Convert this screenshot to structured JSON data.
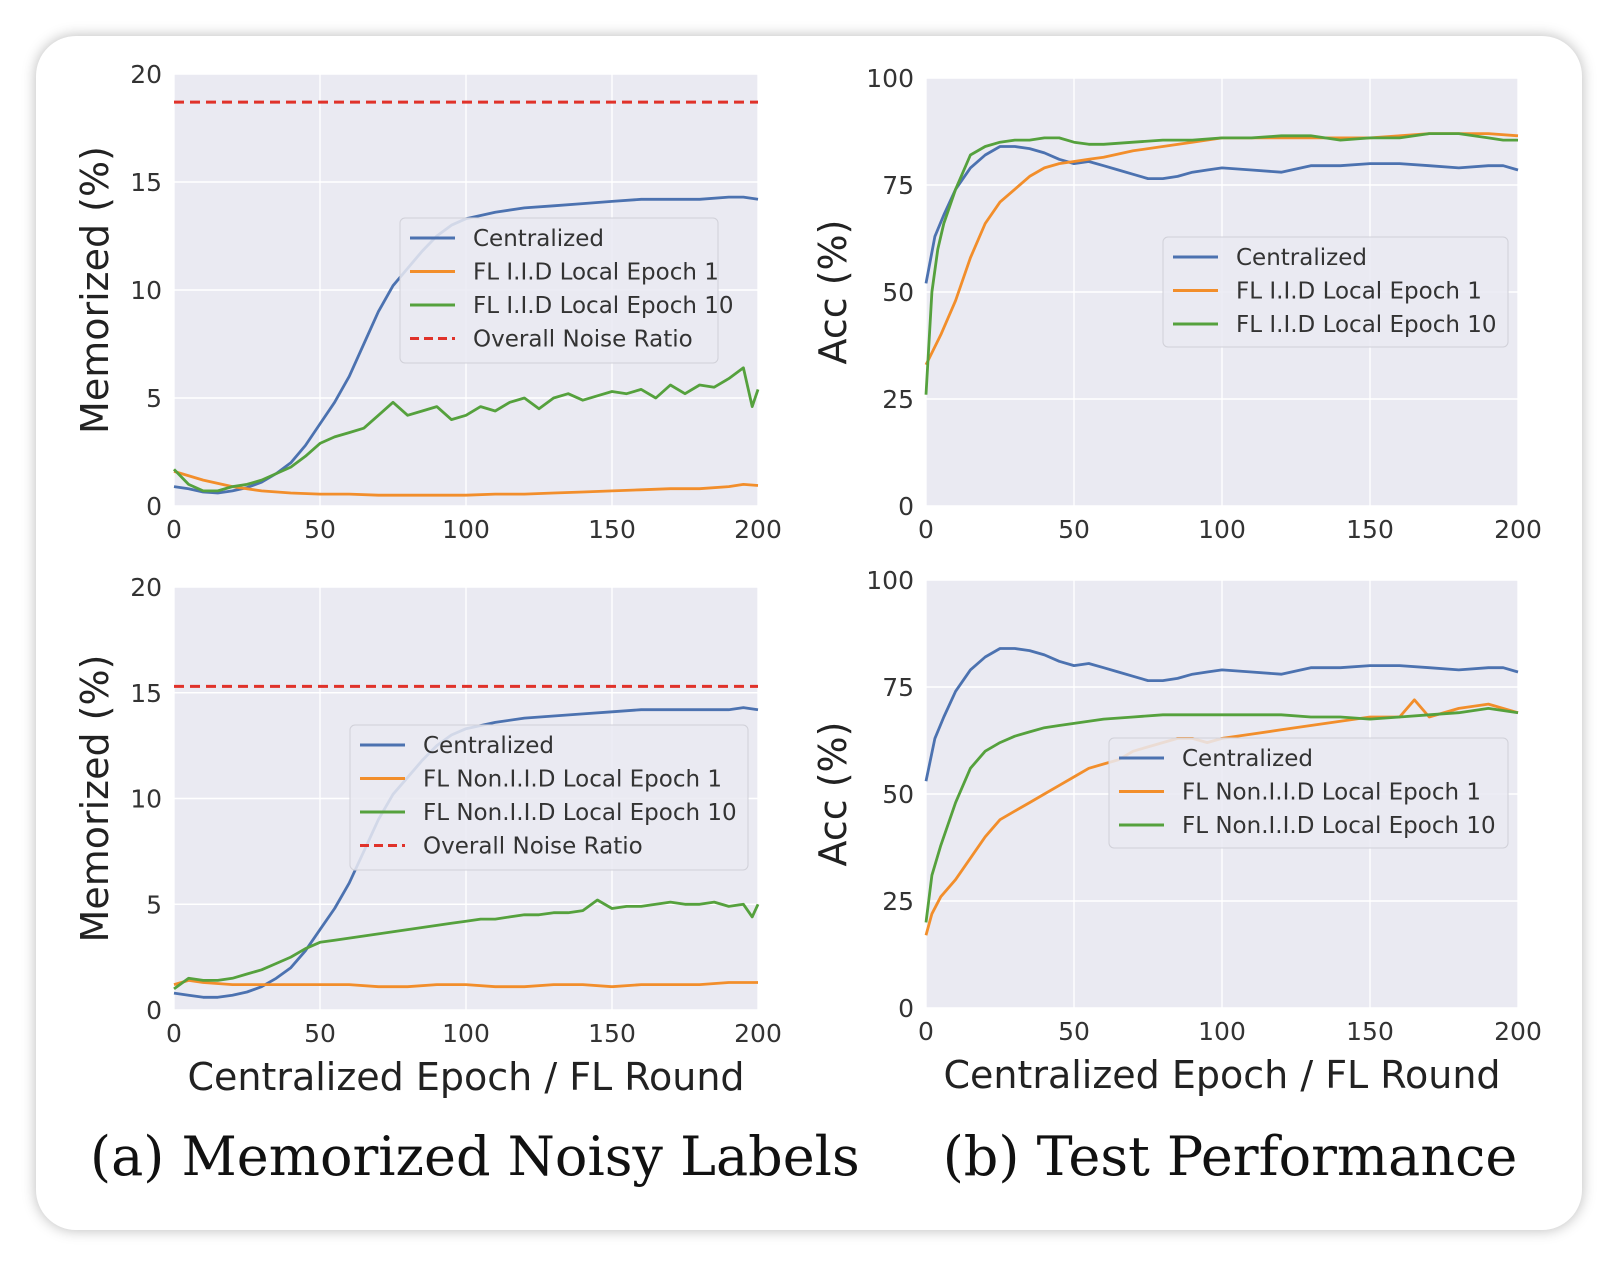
{
  "captions": {
    "a": "(a) Memorized Noisy Labels",
    "b": "(b) Test Performance"
  },
  "colors": {
    "centralized": "#4c72b0",
    "local_epoch_1": "#f28e2b",
    "local_epoch_10": "#55a13d",
    "noise_ratio": "#e0322a",
    "plot_bg": "#eaeaf2",
    "grid": "#ffffff"
  },
  "chart_data": [
    {
      "type": "line",
      "xlabel": "",
      "ylabel": "Memorized (%)",
      "xlim": [
        0,
        200
      ],
      "ylim": [
        0,
        20
      ],
      "xticks": [
        0,
        50,
        100,
        150,
        200
      ],
      "yticks": [
        0,
        5,
        10,
        15,
        20
      ],
      "legend_position": "center-right",
      "series": [
        {
          "name": "Centralized",
          "color": "#4c72b0",
          "x": [
            0,
            5,
            10,
            15,
            20,
            25,
            30,
            35,
            40,
            45,
            50,
            55,
            60,
            65,
            70,
            75,
            80,
            85,
            90,
            95,
            100,
            110,
            120,
            130,
            140,
            150,
            160,
            170,
            180,
            190,
            195,
            200
          ],
          "y": [
            0.9,
            0.8,
            0.65,
            0.6,
            0.7,
            0.85,
            1.1,
            1.5,
            2.0,
            2.8,
            3.8,
            4.8,
            6.0,
            7.5,
            9.0,
            10.2,
            11.0,
            11.8,
            12.5,
            13.0,
            13.3,
            13.6,
            13.8,
            13.9,
            14.0,
            14.1,
            14.2,
            14.2,
            14.2,
            14.3,
            14.3,
            14.2
          ]
        },
        {
          "name": "FL I.I.D Local Epoch 1",
          "color": "#f28e2b",
          "x": [
            0,
            10,
            20,
            30,
            40,
            50,
            60,
            70,
            80,
            90,
            100,
            110,
            120,
            130,
            140,
            150,
            160,
            170,
            180,
            190,
            195,
            200
          ],
          "y": [
            1.6,
            1.2,
            0.9,
            0.7,
            0.6,
            0.55,
            0.55,
            0.5,
            0.5,
            0.5,
            0.5,
            0.55,
            0.55,
            0.6,
            0.65,
            0.7,
            0.75,
            0.8,
            0.8,
            0.9,
            1.0,
            0.95
          ]
        },
        {
          "name": "FL I.I.D Local Epoch 10",
          "color": "#55a13d",
          "x": [
            0,
            5,
            10,
            15,
            20,
            25,
            30,
            35,
            40,
            45,
            50,
            55,
            60,
            65,
            70,
            75,
            80,
            85,
            90,
            95,
            100,
            105,
            110,
            115,
            120,
            125,
            130,
            135,
            140,
            145,
            150,
            155,
            160,
            165,
            170,
            175,
            180,
            185,
            190,
            195,
            198,
            200
          ],
          "y": [
            1.7,
            1.0,
            0.7,
            0.7,
            0.9,
            1.0,
            1.2,
            1.5,
            1.8,
            2.3,
            2.9,
            3.2,
            3.4,
            3.6,
            4.2,
            4.8,
            4.2,
            4.4,
            4.6,
            4.0,
            4.2,
            4.6,
            4.4,
            4.8,
            5.0,
            4.5,
            5.0,
            5.2,
            4.9,
            5.1,
            5.3,
            5.2,
            5.4,
            5.0,
            5.6,
            5.2,
            5.6,
            5.5,
            5.9,
            6.4,
            4.6,
            5.4
          ]
        },
        {
          "name": "Overall Noise Ratio",
          "color": "#e0322a",
          "dashed": true,
          "x": [
            0,
            200
          ],
          "y": [
            18.7,
            18.7
          ]
        }
      ]
    },
    {
      "type": "line",
      "xlabel": "",
      "ylabel": "Acc (%)",
      "xlim": [
        0,
        200
      ],
      "ylim": [
        0,
        100
      ],
      "xticks": [
        0,
        50,
        100,
        150,
        200
      ],
      "yticks": [
        0,
        25,
        50,
        75,
        100
      ],
      "legend_position": "center-right",
      "series": [
        {
          "name": "Centralized",
          "color": "#4c72b0",
          "x": [
            0,
            3,
            6,
            10,
            15,
            20,
            25,
            30,
            35,
            40,
            45,
            50,
            55,
            60,
            65,
            70,
            75,
            80,
            85,
            90,
            95,
            100,
            110,
            120,
            130,
            140,
            150,
            160,
            170,
            180,
            190,
            195,
            200
          ],
          "y": [
            52,
            63,
            68,
            74,
            79,
            82,
            84,
            84,
            83.5,
            82.5,
            81,
            80,
            80.5,
            79.5,
            78.5,
            77.5,
            76.5,
            76.5,
            77,
            78,
            78.5,
            79,
            78.5,
            78,
            79.5,
            79.5,
            80,
            80,
            79.5,
            79,
            79.5,
            79.5,
            78.5
          ]
        },
        {
          "name": "FL I.I.D Local Epoch 1",
          "color": "#f28e2b",
          "x": [
            0,
            5,
            10,
            15,
            20,
            25,
            30,
            35,
            40,
            45,
            50,
            55,
            60,
            70,
            80,
            90,
            100,
            110,
            120,
            130,
            140,
            150,
            160,
            170,
            180,
            190,
            200
          ],
          "y": [
            33,
            40,
            48,
            58,
            66,
            71,
            74,
            77,
            79,
            80,
            80.5,
            81,
            81.5,
            83,
            84,
            85,
            86,
            86,
            86,
            86,
            86,
            86,
            86.5,
            87,
            87,
            87,
            86.5
          ]
        },
        {
          "name": "FL I.I.D Local Epoch 10",
          "color": "#55a13d",
          "x": [
            0,
            2,
            4,
            6,
            8,
            10,
            15,
            20,
            25,
            30,
            35,
            40,
            45,
            50,
            55,
            60,
            70,
            80,
            90,
            100,
            110,
            120,
            130,
            140,
            150,
            160,
            170,
            180,
            190,
            195,
            200
          ],
          "y": [
            26,
            50,
            60,
            66,
            70,
            74,
            82,
            84,
            85,
            85.5,
            85.5,
            86,
            86,
            85,
            84.5,
            84.5,
            85,
            85.5,
            85.5,
            86,
            86,
            86.5,
            86.5,
            85.5,
            86,
            86,
            87,
            87,
            86,
            85.5,
            85.5
          ]
        }
      ]
    },
    {
      "type": "line",
      "xlabel": "Centralized Epoch / FL Round",
      "ylabel": "Memorized (%)",
      "xlim": [
        0,
        200
      ],
      "ylim": [
        0,
        20
      ],
      "xticks": [
        0,
        50,
        100,
        150,
        200
      ],
      "yticks": [
        0,
        5,
        10,
        15,
        20
      ],
      "legend_position": "center-right",
      "series": [
        {
          "name": "Centralized",
          "color": "#4c72b0",
          "x": [
            0,
            5,
            10,
            15,
            20,
            25,
            30,
            35,
            40,
            45,
            50,
            55,
            60,
            65,
            70,
            75,
            80,
            85,
            90,
            95,
            100,
            110,
            120,
            130,
            140,
            150,
            160,
            170,
            180,
            190,
            195,
            200
          ],
          "y": [
            0.8,
            0.7,
            0.6,
            0.6,
            0.7,
            0.85,
            1.1,
            1.5,
            2.0,
            2.8,
            3.8,
            4.8,
            6.0,
            7.5,
            9.0,
            10.2,
            11.0,
            11.8,
            12.5,
            13.0,
            13.3,
            13.6,
            13.8,
            13.9,
            14.0,
            14.1,
            14.2,
            14.2,
            14.2,
            14.2,
            14.3,
            14.2
          ]
        },
        {
          "name": "FL Non.I.I.D Local Epoch 1",
          "color": "#f28e2b",
          "x": [
            0,
            5,
            10,
            20,
            30,
            40,
            50,
            60,
            70,
            80,
            90,
            100,
            110,
            120,
            130,
            140,
            150,
            160,
            170,
            180,
            190,
            200
          ],
          "y": [
            1.2,
            1.4,
            1.3,
            1.2,
            1.2,
            1.2,
            1.2,
            1.2,
            1.1,
            1.1,
            1.2,
            1.2,
            1.1,
            1.1,
            1.2,
            1.2,
            1.1,
            1.2,
            1.2,
            1.2,
            1.3,
            1.3
          ]
        },
        {
          "name": "FL Non.I.I.D Local Epoch 10",
          "color": "#55a13d",
          "x": [
            0,
            5,
            10,
            15,
            20,
            25,
            30,
            35,
            40,
            45,
            50,
            55,
            60,
            65,
            70,
            75,
            80,
            85,
            90,
            95,
            100,
            105,
            110,
            115,
            120,
            125,
            130,
            135,
            140,
            145,
            150,
            155,
            160,
            165,
            170,
            175,
            180,
            185,
            190,
            195,
            198,
            200
          ],
          "y": [
            1.0,
            1.5,
            1.4,
            1.4,
            1.5,
            1.7,
            1.9,
            2.2,
            2.5,
            2.9,
            3.2,
            3.3,
            3.4,
            3.5,
            3.6,
            3.7,
            3.8,
            3.9,
            4.0,
            4.1,
            4.2,
            4.3,
            4.3,
            4.4,
            4.5,
            4.5,
            4.6,
            4.6,
            4.7,
            5.2,
            4.8,
            4.9,
            4.9,
            5.0,
            5.1,
            5.0,
            5.0,
            5.1,
            4.9,
            5.0,
            4.4,
            5.0
          ]
        },
        {
          "name": "Overall Noise Ratio",
          "color": "#e0322a",
          "dashed": true,
          "x": [
            0,
            200
          ],
          "y": [
            15.3,
            15.3
          ]
        }
      ]
    },
    {
      "type": "line",
      "xlabel": "Centralized Epoch / FL Round",
      "ylabel": "Acc (%)",
      "xlim": [
        0,
        200
      ],
      "ylim": [
        0,
        100
      ],
      "xticks": [
        0,
        50,
        100,
        150,
        200
      ],
      "yticks": [
        0,
        25,
        50,
        75,
        100
      ],
      "legend_position": "center-right",
      "series": [
        {
          "name": "Centralized",
          "color": "#4c72b0",
          "x": [
            0,
            3,
            6,
            10,
            15,
            20,
            25,
            30,
            35,
            40,
            45,
            50,
            55,
            60,
            65,
            70,
            75,
            80,
            85,
            90,
            95,
            100,
            110,
            120,
            130,
            140,
            150,
            160,
            170,
            180,
            190,
            195,
            200
          ],
          "y": [
            53,
            63,
            68,
            74,
            79,
            82,
            84,
            84,
            83.5,
            82.5,
            81,
            80,
            80.5,
            79.5,
            78.5,
            77.5,
            76.5,
            76.5,
            77,
            78,
            78.5,
            79,
            78.5,
            78,
            79.5,
            79.5,
            80,
            80,
            79.5,
            79,
            79.5,
            79.5,
            78.5
          ]
        },
        {
          "name": "FL Non.I.I.D Local Epoch 1",
          "color": "#f28e2b",
          "x": [
            0,
            2,
            5,
            10,
            15,
            20,
            25,
            30,
            35,
            40,
            45,
            50,
            55,
            60,
            65,
            70,
            75,
            80,
            85,
            90,
            95,
            100,
            110,
            120,
            130,
            140,
            150,
            160,
            165,
            170,
            180,
            190,
            200
          ],
          "y": [
            17,
            22,
            26,
            30,
            35,
            40,
            44,
            46,
            48,
            50,
            52,
            54,
            56,
            57,
            58,
            60,
            61,
            62,
            63,
            63,
            62,
            63,
            64,
            65,
            66,
            67,
            68,
            68,
            72,
            68,
            70,
            71,
            69
          ]
        },
        {
          "name": "FL Non.I.I.D Local Epoch 10",
          "color": "#55a13d",
          "x": [
            0,
            2,
            5,
            10,
            15,
            20,
            25,
            30,
            35,
            40,
            45,
            50,
            55,
            60,
            70,
            80,
            90,
            100,
            110,
            120,
            130,
            140,
            150,
            160,
            170,
            180,
            190,
            200
          ],
          "y": [
            20,
            31,
            38,
            48,
            56,
            60,
            62,
            63.5,
            64.5,
            65.5,
            66,
            66.5,
            67,
            67.5,
            68,
            68.5,
            68.5,
            68.5,
            68.5,
            68.5,
            68,
            68,
            67.5,
            68,
            68.5,
            69,
            70,
            69
          ]
        }
      ]
    }
  ]
}
